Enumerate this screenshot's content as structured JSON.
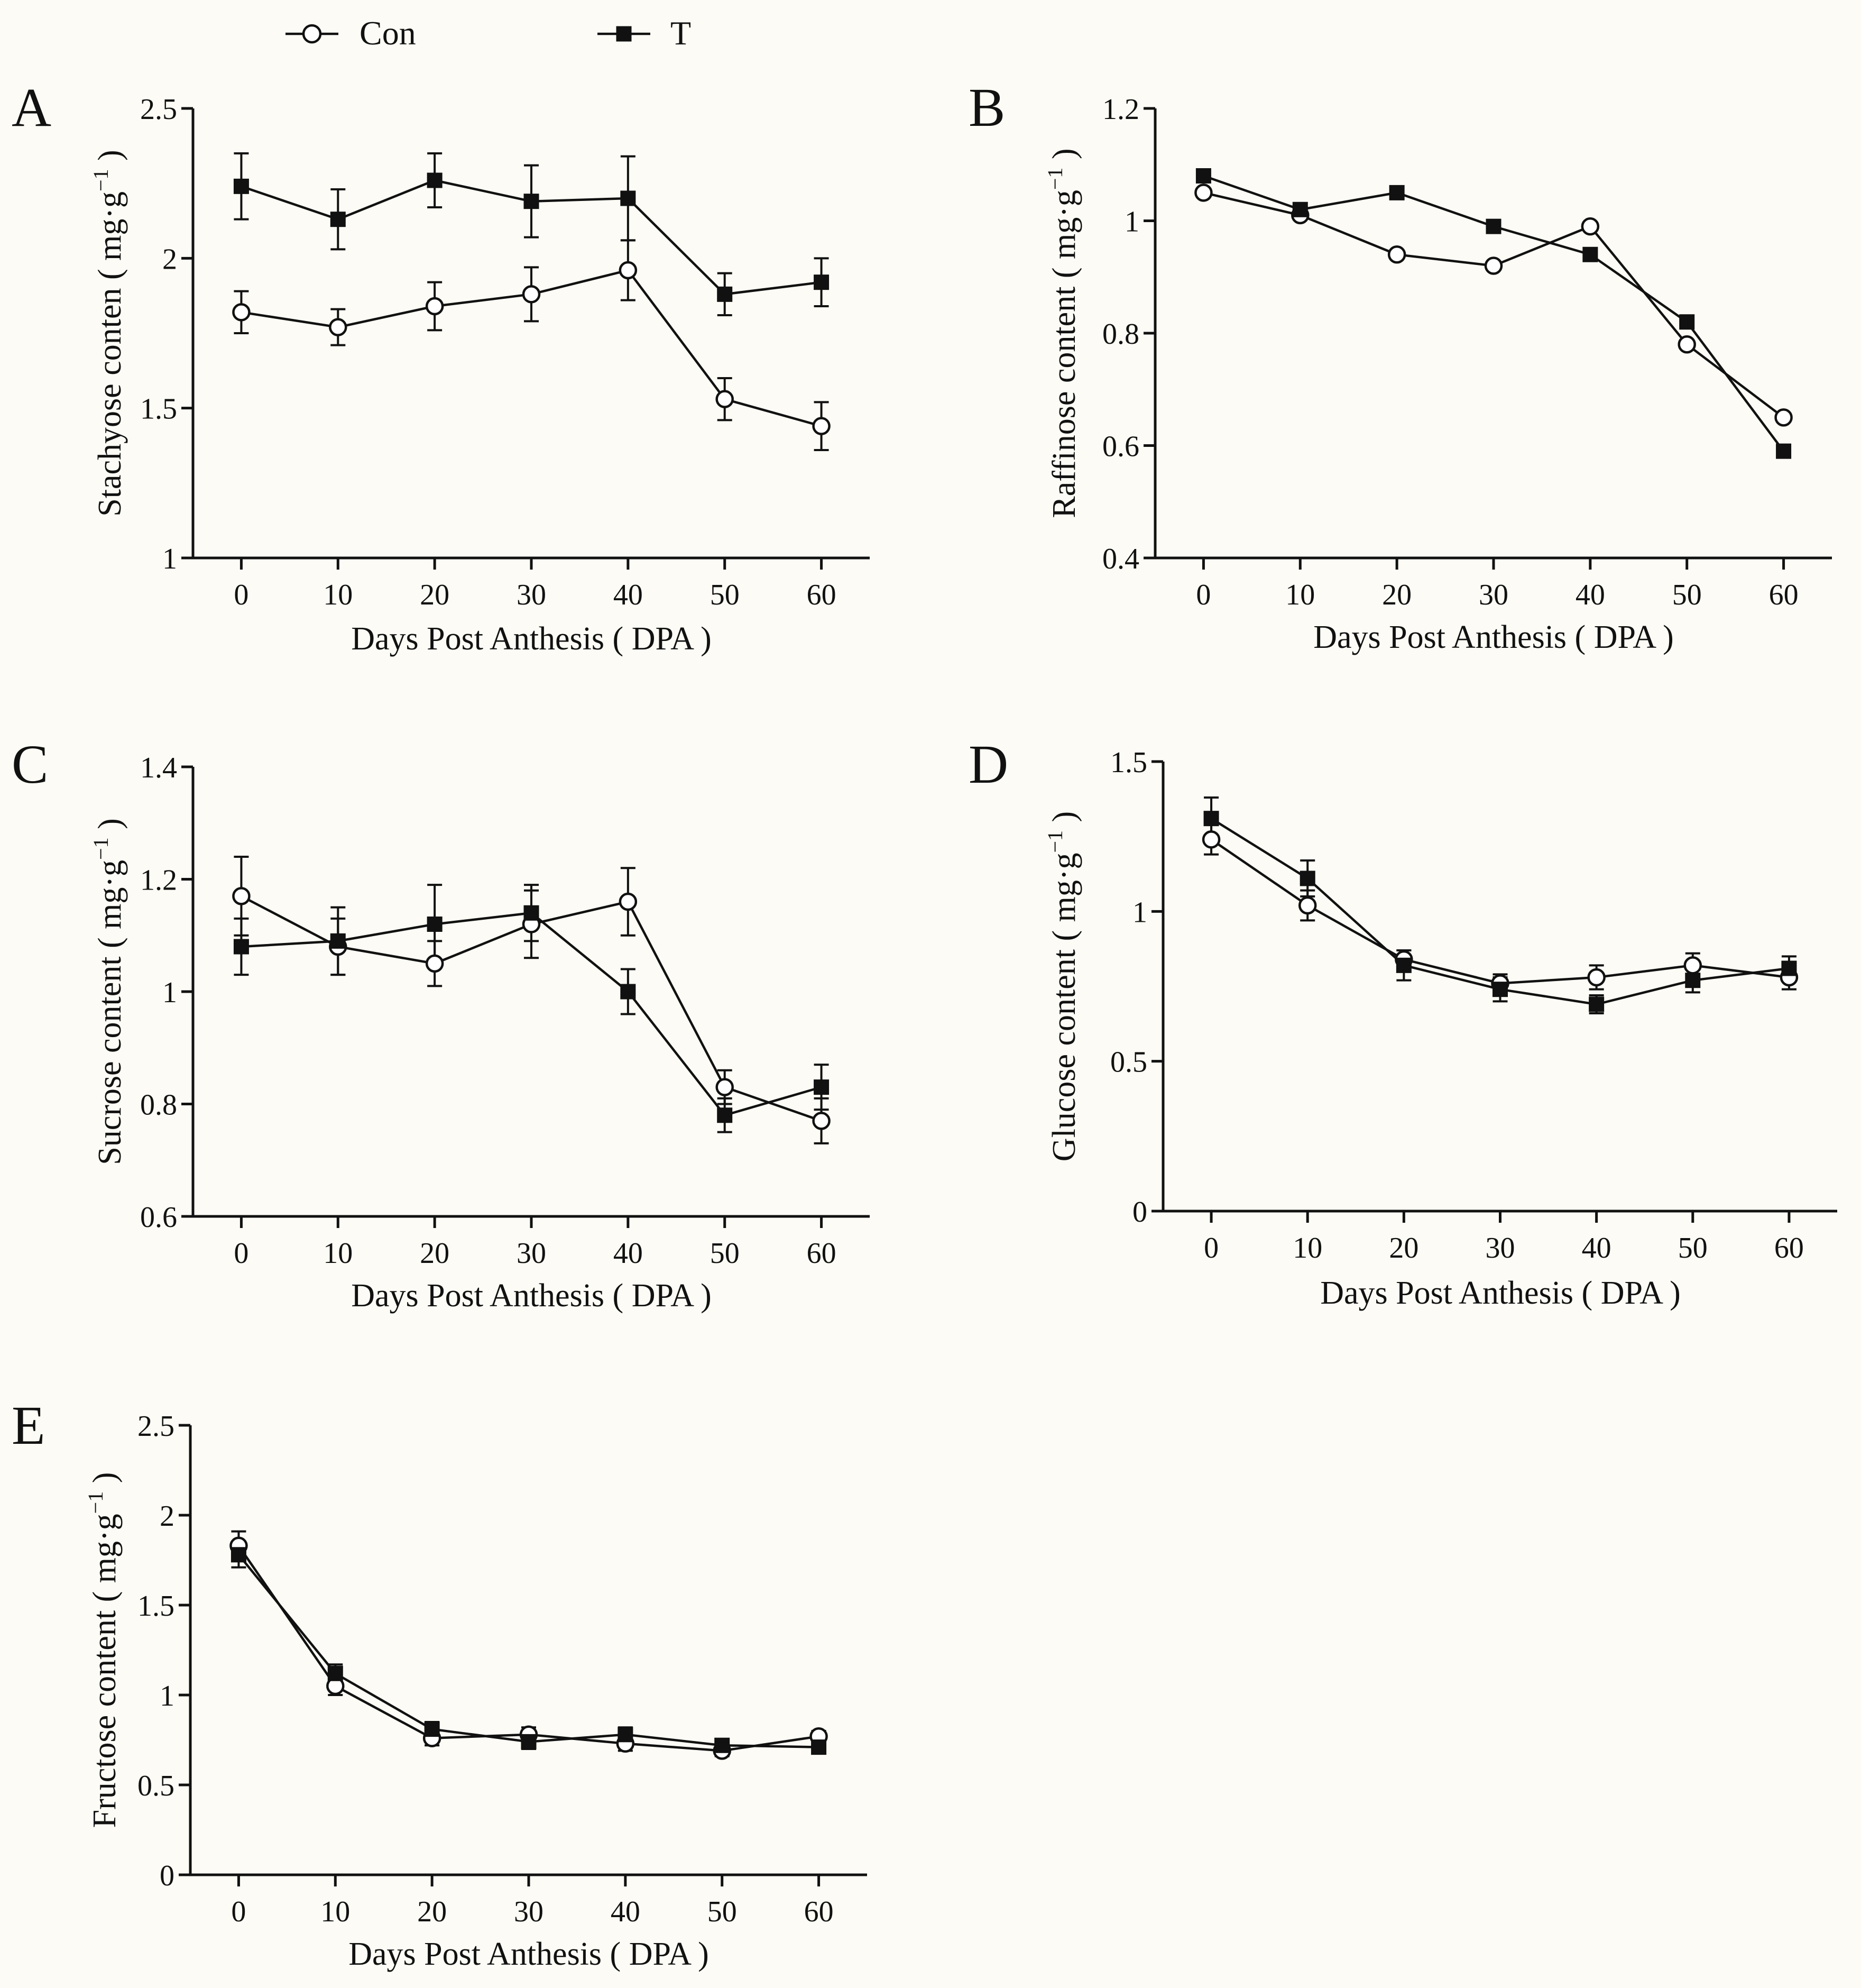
{
  "legend": {
    "entries": [
      {
        "name": "Con",
        "marker": "open-circle"
      },
      {
        "name": "T",
        "marker": "filled-square"
      }
    ]
  },
  "chart_data": [
    {
      "type": "line",
      "panel": "A",
      "xlabel": "Days Post Anthesis ( DPA )",
      "ylabel": "Stachyose conten ( mg·g-1 )",
      "ylabel_main": "Stachyose conten ( mg·g",
      "ylabel_sup": "−1",
      "ylabel_end": " )",
      "x": [
        0,
        10,
        20,
        30,
        40,
        50,
        60
      ],
      "xlim": [
        -5,
        65
      ],
      "ylim": [
        1,
        2.5
      ],
      "yticks": [
        1,
        1.5,
        2,
        2.5
      ],
      "ytick_labels": [
        "1",
        "1.5",
        "2",
        "2.5"
      ],
      "series": [
        {
          "name": "Con",
          "values": [
            1.82,
            1.77,
            1.84,
            1.88,
            1.96,
            1.53,
            1.44
          ],
          "errors": [
            0.07,
            0.06,
            0.08,
            0.09,
            0.1,
            0.07,
            0.08
          ]
        },
        {
          "name": "T",
          "values": [
            2.24,
            2.13,
            2.26,
            2.19,
            2.2,
            1.88,
            1.92
          ],
          "errors": [
            0.11,
            0.1,
            0.09,
            0.12,
            0.14,
            0.07,
            0.08
          ]
        }
      ]
    },
    {
      "type": "line",
      "panel": "B",
      "xlabel": "Days Post Anthesis  ( DPA )",
      "ylabel": "Raffinose content ( mg·g-1 )",
      "ylabel_main": "Raffinose content ( mg·g",
      "ylabel_sup": "−1",
      "ylabel_end": " )",
      "x": [
        0,
        10,
        20,
        30,
        40,
        50,
        60
      ],
      "xlim": [
        -5,
        65
      ],
      "ylim": [
        0.4,
        1.2
      ],
      "yticks": [
        0.4,
        0.6,
        0.8,
        1,
        1.2
      ],
      "ytick_labels": [
        "0.4",
        "0.6",
        "0.8",
        "1",
        "1.2"
      ],
      "series": [
        {
          "name": "Con",
          "values": [
            1.05,
            1.01,
            0.94,
            0.92,
            0.99,
            0.78,
            0.65
          ],
          "errors": [
            0,
            0,
            0,
            0,
            0,
            0,
            0
          ]
        },
        {
          "name": "T",
          "values": [
            1.08,
            1.02,
            1.05,
            0.99,
            0.94,
            0.82,
            0.59
          ],
          "errors": [
            0,
            0,
            0,
            0,
            0,
            0,
            0
          ]
        }
      ]
    },
    {
      "type": "line",
      "panel": "C",
      "xlabel": "Days Post Anthesis  ( DPA )",
      "ylabel": "Sucrose content ( mg·g-1 )",
      "ylabel_main": "Sucrose content ( mg·g",
      "ylabel_sup": "−1",
      "ylabel_end": " )",
      "x": [
        0,
        10,
        20,
        30,
        40,
        50,
        60
      ],
      "xlim": [
        -5,
        65
      ],
      "ylim": [
        0.6,
        1.4
      ],
      "yticks": [
        0.6,
        0.8,
        1,
        1.2,
        1.4
      ],
      "ytick_labels": [
        "0.6",
        "0.8",
        "1",
        "1.2",
        "1.4"
      ],
      "series": [
        {
          "name": "Con",
          "values": [
            1.17,
            1.08,
            1.05,
            1.12,
            1.16,
            0.83,
            0.77
          ],
          "errors": [
            0.07,
            0.05,
            0.04,
            0.06,
            0.06,
            0.03,
            0.04
          ]
        },
        {
          "name": "T",
          "values": [
            1.08,
            1.09,
            1.12,
            1.14,
            1.0,
            0.78,
            0.83
          ],
          "errors": [
            0.05,
            0.06,
            0.07,
            0.05,
            0.04,
            0.03,
            0.04
          ]
        }
      ]
    },
    {
      "type": "line",
      "panel": "D",
      "xlabel": "Days Post Anthesis ( DPA )",
      "ylabel": "Glucose content ( mg·g-1 )",
      "ylabel_main": "Glucose content ( mg·g",
      "ylabel_sup": "−1",
      "ylabel_end": " )",
      "x": [
        0,
        10,
        20,
        30,
        40,
        50,
        60
      ],
      "xlim": [
        -5,
        65
      ],
      "ylim": [
        0,
        1.5
      ],
      "yticks": [
        0,
        0.5,
        1,
        1.5
      ],
      "ytick_labels": [
        "0",
        "0.5",
        "1",
        "1.5"
      ],
      "series": [
        {
          "name": "Con",
          "values": [
            1.24,
            1.02,
            0.84,
            0.76,
            0.78,
            0.82,
            0.78
          ],
          "errors": [
            0.05,
            0.05,
            0.03,
            0.03,
            0.04,
            0.04,
            0.04
          ]
        },
        {
          "name": "T",
          "values": [
            1.31,
            1.11,
            0.82,
            0.74,
            0.69,
            0.77,
            0.81
          ],
          "errors": [
            0.07,
            0.06,
            0.05,
            0.04,
            0.03,
            0.04,
            0.04
          ]
        }
      ]
    },
    {
      "type": "line",
      "panel": "E",
      "xlabel": "Days Post Anthesis  ( DPA )",
      "ylabel": "Fructose content ( mg·g-1 )",
      "ylabel_main": "Fructose content ( mg·g",
      "ylabel_sup": "−1",
      "ylabel_end": " )",
      "x": [
        0,
        10,
        20,
        30,
        40,
        50,
        60
      ],
      "xlim": [
        -5,
        65
      ],
      "ylim": [
        0,
        2.5
      ],
      "yticks": [
        0,
        0.5,
        1,
        1.5,
        2,
        2.5
      ],
      "ytick_labels": [
        "0",
        "0.5",
        "1",
        "1.5",
        "2",
        "2.5"
      ],
      "series": [
        {
          "name": "Con",
          "values": [
            1.83,
            1.05,
            0.76,
            0.78,
            0.73,
            0.69,
            0.77
          ],
          "errors": [
            0.08,
            0.05,
            0.04,
            0.04,
            0.04,
            0.03,
            0.03
          ]
        },
        {
          "name": "T",
          "values": [
            1.78,
            1.12,
            0.81,
            0.74,
            0.78,
            0.72,
            0.71
          ],
          "errors": [
            0.07,
            0.05,
            0.04,
            0.04,
            0.04,
            0.03,
            0.03
          ]
        }
      ]
    }
  ]
}
